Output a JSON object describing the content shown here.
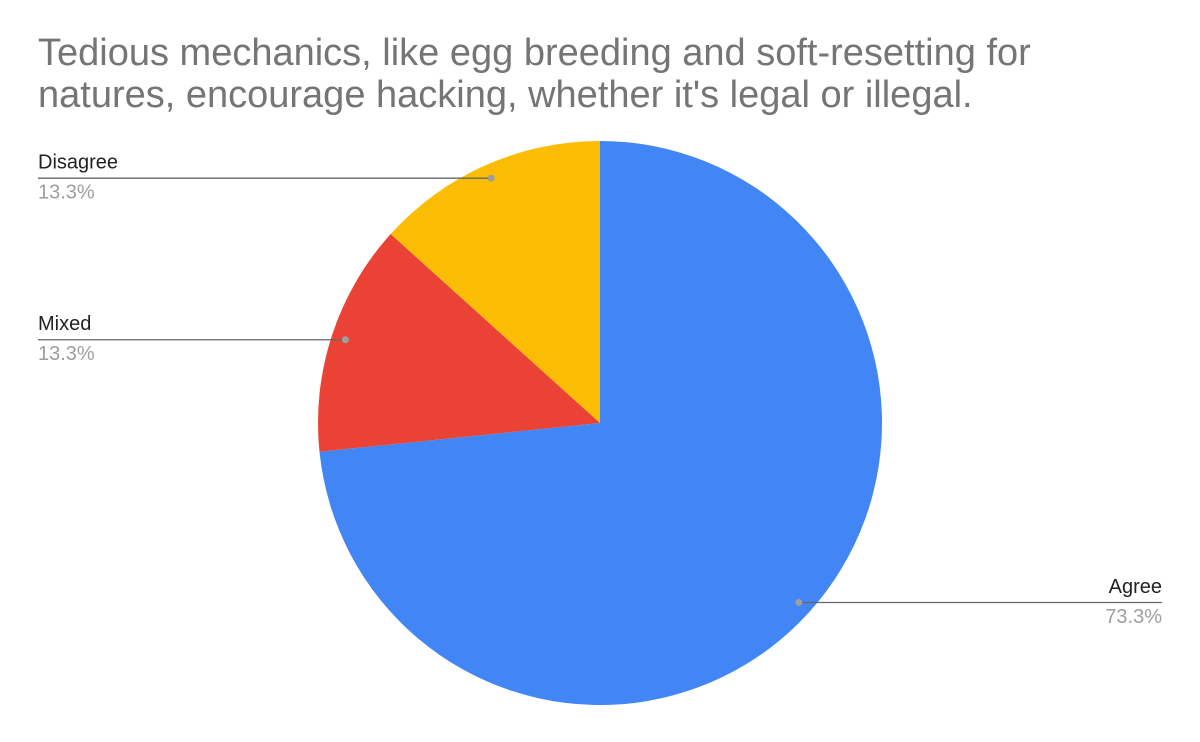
{
  "chart_data": {
    "type": "pie",
    "title": "Tedious mechanics, like egg breeding and soft-resetting for natures, encourage hacking, whether it's legal or illegal.",
    "categories": [
      "Agree",
      "Mixed",
      "Disagree"
    ],
    "values": [
      73.3,
      13.3,
      13.3
    ],
    "value_labels": [
      "73.3%",
      "13.3%",
      "13.3%"
    ],
    "colors": [
      "#4285f4",
      "#ea4335",
      "#fbbc04"
    ]
  }
}
